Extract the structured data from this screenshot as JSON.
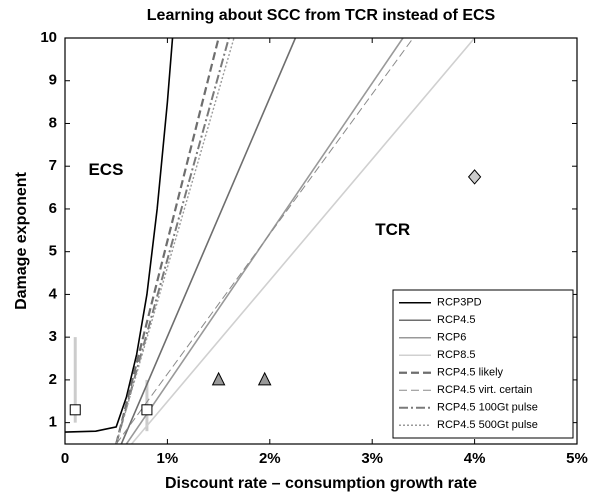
{
  "chart_data": {
    "type": "line",
    "title": "Learning about SCC from TCR instead of ECS",
    "xlabel": "Discount rate – consumption growth rate",
    "ylabel": "Damage exponent",
    "xlim": [
      0,
      5
    ],
    "ylim": [
      0.5,
      10
    ],
    "xticks": [
      0,
      {
        "value": 1,
        "label": "1%"
      },
      {
        "value": 2,
        "label": "2%"
      },
      {
        "value": 3,
        "label": "3%"
      },
      {
        "value": 4,
        "label": "4%"
      },
      {
        "value": 5,
        "label": "5%"
      }
    ],
    "yticks": [
      1,
      2,
      3,
      4,
      5,
      6,
      7,
      8,
      9,
      10
    ],
    "legend": "lower right",
    "series": [
      {
        "name": "RCP3PD",
        "color": "#000000",
        "dash": "solid",
        "width": 1.6,
        "x": [
          0,
          0.3,
          0.5,
          0.6,
          0.7,
          0.8,
          0.9,
          1.0,
          1.05
        ],
        "values": [
          0.78,
          0.8,
          0.9,
          1.6,
          2.6,
          4,
          6,
          8.5,
          10
        ]
      },
      {
        "name": "RCP4.5",
        "color": "#6e6e6e",
        "dash": "solid",
        "width": 1.6,
        "x": [
          0.55,
          2.25
        ],
        "values": [
          0.5,
          10
        ]
      },
      {
        "name": "RCP6",
        "color": "#999999",
        "dash": "solid",
        "width": 1.6,
        "x": [
          0.6,
          3.3
        ],
        "values": [
          0.5,
          10
        ]
      },
      {
        "name": "RCP8.5",
        "color": "#d0d0d0",
        "dash": "solid",
        "width": 1.6,
        "x": [
          0.65,
          4
        ],
        "values": [
          0.5,
          10
        ]
      },
      {
        "name": "RCP4.5 likely",
        "color": "#6e6e6e",
        "dash": "dashed",
        "width": 2.2,
        "x": [
          0.5,
          1.5
        ],
        "values": [
          0.5,
          10
        ]
      },
      {
        "name": "RCP4.5 virt. certain",
        "color": "#8a8a8a",
        "dash": "dashed",
        "width": 1,
        "x": [
          0.5,
          3.4
        ],
        "values": [
          0.5,
          10
        ]
      },
      {
        "name": "RCP4.5 100Gt pulse",
        "color": "#7a7a7a",
        "dash": "dashdot",
        "width": 2,
        "x": [
          0.5,
          1.6
        ],
        "values": [
          0.5,
          10
        ]
      },
      {
        "name": "RCP4.5 500Gt pulse",
        "color": "#9a9a9a",
        "dash": "dotted",
        "width": 1.4,
        "x": [
          0.5,
          1.65
        ],
        "values": [
          0.5,
          10
        ]
      }
    ],
    "points": [
      {
        "shape": "diamond",
        "color": "#cccccc",
        "x": 4,
        "y": 6.75
      },
      {
        "shape": "triangle",
        "color": "#999999",
        "x": 1.5,
        "y": 2
      },
      {
        "shape": "triangle",
        "color": "#999999",
        "x": 1.95,
        "y": 2
      },
      {
        "shape": "square",
        "color": "#ffffff",
        "x": 0.1,
        "y": 1.3
      },
      {
        "shape": "square",
        "color": "#ffffff",
        "x": 0.8,
        "y": 1.3
      }
    ],
    "error_bars": [
      {
        "color": "#cccccc",
        "x": 0.1,
        "low": 1,
        "high": 3
      },
      {
        "color": "#cccccc",
        "x": 0.8,
        "low": 0.8,
        "high": 2
      }
    ],
    "annotations": [
      {
        "text": "ECS",
        "x": 0.4,
        "y": 6.9
      },
      {
        "text": "TCR",
        "x": 3.2,
        "y": 5.5
      }
    ]
  }
}
